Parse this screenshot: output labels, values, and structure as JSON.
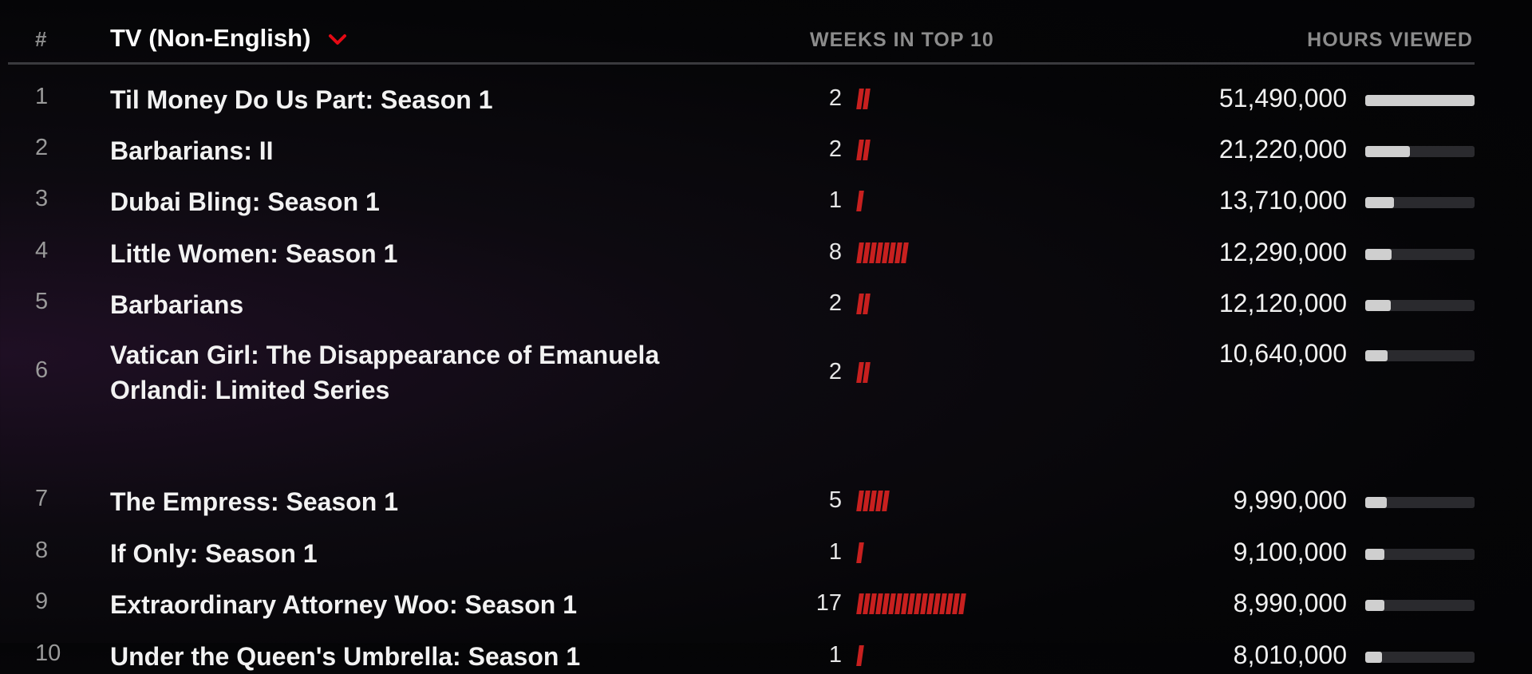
{
  "header": {
    "rank_label": "#",
    "category_label": "TV (Non-English)",
    "weeks_label": "WEEKS IN TOP 10",
    "hours_label": "HOURS VIEWED"
  },
  "colors": {
    "accent_red": "#c8201f",
    "hours_bar": "#cfcfcf",
    "track": "#2a2a2e"
  },
  "rows": [
    {
      "rank": "1",
      "title": "Til Money Do Us Part: Season 1",
      "weeks": "2",
      "weeks_count": 2,
      "hours": "51,490,000",
      "hours_value": 51490000
    },
    {
      "rank": "2",
      "title": "Barbarians: II",
      "weeks": "2",
      "weeks_count": 2,
      "hours": "21,220,000",
      "hours_value": 21220000
    },
    {
      "rank": "3",
      "title": "Dubai Bling: Season 1",
      "weeks": "1",
      "weeks_count": 1,
      "hours": "13,710,000",
      "hours_value": 13710000
    },
    {
      "rank": "4",
      "title": "Little Women: Season 1",
      "weeks": "8",
      "weeks_count": 8,
      "hours": "12,290,000",
      "hours_value": 12290000
    },
    {
      "rank": "5",
      "title": "Barbarians",
      "weeks": "2",
      "weeks_count": 2,
      "hours": "12,120,000",
      "hours_value": 12120000
    },
    {
      "rank": "6",
      "title": "Vatican Girl: The Disappearance of Emanuela Orlandi: Limited Series",
      "weeks": "2",
      "weeks_count": 2,
      "hours": "10,640,000",
      "hours_value": 10640000
    },
    {
      "rank": "7",
      "title": "The Empress: Season 1",
      "weeks": "5",
      "weeks_count": 5,
      "hours": "9,990,000",
      "hours_value": 9990000
    },
    {
      "rank": "8",
      "title": "If Only: Season 1",
      "weeks": "1",
      "weeks_count": 1,
      "hours": "9,100,000",
      "hours_value": 9100000
    },
    {
      "rank": "9",
      "title": "Extraordinary Attorney Woo: Season 1",
      "weeks": "17",
      "weeks_count": 17,
      "hours": "8,990,000",
      "hours_value": 8990000
    },
    {
      "rank": "10",
      "title": "Under the Queen's Umbrella: Season 1",
      "weeks": "1",
      "weeks_count": 1,
      "hours": "8,010,000",
      "hours_value": 8010000
    }
  ]
}
